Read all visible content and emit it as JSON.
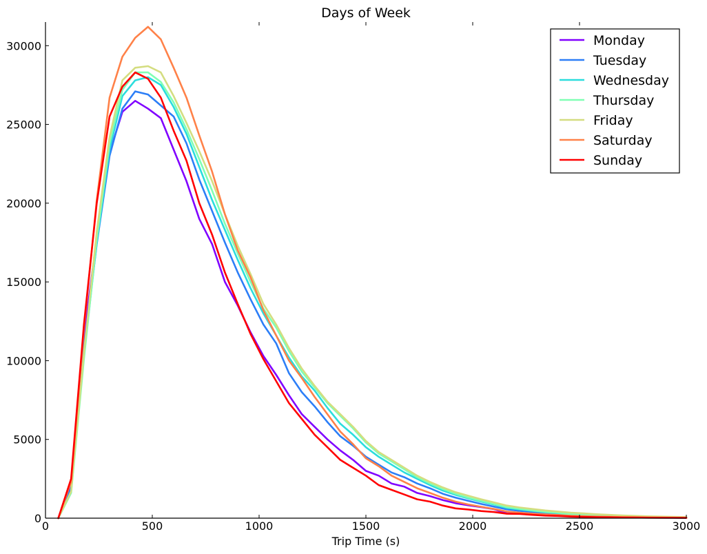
{
  "chart_data": {
    "type": "line",
    "title": "Days of Week",
    "xlabel": "Trip Time (s)",
    "ylabel": "",
    "xlim": [
      0,
      3000
    ],
    "ylim": [
      0,
      31500
    ],
    "xticks": [
      0,
      500,
      1000,
      1500,
      2000,
      2500,
      3000
    ],
    "yticks": [
      0,
      5000,
      10000,
      15000,
      20000,
      25000,
      30000
    ],
    "grid": false,
    "legend_position": "top-right",
    "x": [
      60,
      120,
      180,
      240,
      300,
      360,
      420,
      480,
      540,
      600,
      660,
      720,
      780,
      840,
      900,
      960,
      1020,
      1080,
      1140,
      1200,
      1260,
      1320,
      1380,
      1440,
      1500,
      1560,
      1620,
      1680,
      1740,
      1800,
      1860,
      1920,
      1980,
      2040,
      2100,
      2160,
      2220,
      2280,
      2340,
      2400,
      2460,
      2520,
      2580,
      2640,
      2700,
      2760,
      2820,
      2880,
      2940,
      3000
    ],
    "series": [
      {
        "name": "Monday",
        "color": "#8000ff",
        "values": [
          0,
          2200,
          11500,
          17800,
          23200,
          25800,
          26500,
          26000,
          25400,
          23400,
          21400,
          19000,
          17400,
          15000,
          13500,
          11800,
          10300,
          9100,
          7800,
          6600,
          5800,
          5000,
          4300,
          3700,
          3000,
          2700,
          2200,
          2000,
          1600,
          1400,
          1150,
          950,
          820,
          700,
          570,
          300,
          280,
          240,
          210,
          180,
          120,
          100,
          80,
          70,
          60,
          50,
          40,
          35,
          30,
          25
        ]
      },
      {
        "name": "Tuesday",
        "color": "#2c7ef7",
        "values": [
          0,
          1900,
          10800,
          17400,
          23000,
          26000,
          27100,
          26900,
          26200,
          25500,
          23800,
          21500,
          19500,
          17500,
          15600,
          13900,
          12300,
          11100,
          9200,
          8000,
          7100,
          6100,
          5200,
          4600,
          3900,
          3400,
          2900,
          2600,
          2200,
          1900,
          1550,
          1300,
          1100,
          900,
          730,
          560,
          460,
          390,
          320,
          270,
          200,
          170,
          140,
          120,
          100,
          80,
          65,
          55,
          45,
          35
        ]
      },
      {
        "name": "Wednesday",
        "color": "#2adddd",
        "values": [
          0,
          1700,
          10300,
          17500,
          23400,
          26800,
          27800,
          28000,
          27500,
          26100,
          24400,
          22300,
          20200,
          18300,
          16400,
          14600,
          13000,
          11600,
          10200,
          9000,
          8100,
          7000,
          6000,
          5300,
          4500,
          3900,
          3400,
          2900,
          2500,
          2100,
          1750,
          1480,
          1250,
          1050,
          860,
          650,
          550,
          460,
          380,
          320,
          240,
          200,
          170,
          140,
          115,
          95,
          75,
          60,
          50,
          40
        ]
      },
      {
        "name": "Thursday",
        "color": "#80ffb4",
        "values": [
          0,
          1600,
          10100,
          17700,
          23800,
          27200,
          28300,
          28300,
          27700,
          26400,
          24700,
          22800,
          20800,
          18700,
          16800,
          15000,
          13300,
          12100,
          10600,
          9300,
          8300,
          7300,
          6500,
          5700,
          4800,
          4100,
          3600,
          3100,
          2600,
          2200,
          1850,
          1550,
          1300,
          1100,
          900,
          700,
          590,
          490,
          400,
          340,
          260,
          220,
          180,
          150,
          125,
          100,
          80,
          65,
          55,
          45
        ]
      },
      {
        "name": "Friday",
        "color": "#d4dd80",
        "values": [
          0,
          1700,
          10500,
          18200,
          24200,
          27800,
          28600,
          28700,
          28300,
          26800,
          25100,
          23300,
          21400,
          19300,
          17300,
          15500,
          13600,
          12300,
          10800,
          9500,
          8400,
          7400,
          6600,
          5800,
          4900,
          4200,
          3700,
          3200,
          2700,
          2300,
          1950,
          1650,
          1420,
          1200,
          1000,
          800,
          680,
          580,
          490,
          420,
          350,
          300,
          250,
          210,
          175,
          145,
          120,
          100,
          85,
          70
        ]
      },
      {
        "name": "Saturday",
        "color": "#ff8148",
        "values": [
          0,
          2300,
          12000,
          20200,
          26700,
          29300,
          30500,
          31200,
          30400,
          28600,
          26700,
          24300,
          22000,
          19300,
          17000,
          15300,
          13200,
          11600,
          10000,
          8900,
          7700,
          6600,
          5500,
          4700,
          3800,
          3300,
          2700,
          2300,
          1900,
          1600,
          1300,
          1050,
          870,
          720,
          580,
          420,
          350,
          290,
          240,
          200,
          150,
          125,
          100,
          85,
          70,
          58,
          48,
          40,
          33,
          28
        ]
      },
      {
        "name": "Sunday",
        "color": "#ff0000",
        "values": [
          0,
          2500,
          12300,
          20000,
          25500,
          27400,
          28300,
          27900,
          26700,
          24600,
          22700,
          20000,
          18000,
          15600,
          13600,
          11700,
          10100,
          8700,
          7300,
          6300,
          5300,
          4500,
          3700,
          3200,
          2700,
          2100,
          1800,
          1500,
          1200,
          1050,
          800,
          620,
          550,
          450,
          390,
          280,
          270,
          210,
          160,
          140,
          100,
          80,
          65,
          55,
          45,
          38,
          32,
          26,
          22,
          18
        ]
      }
    ]
  }
}
